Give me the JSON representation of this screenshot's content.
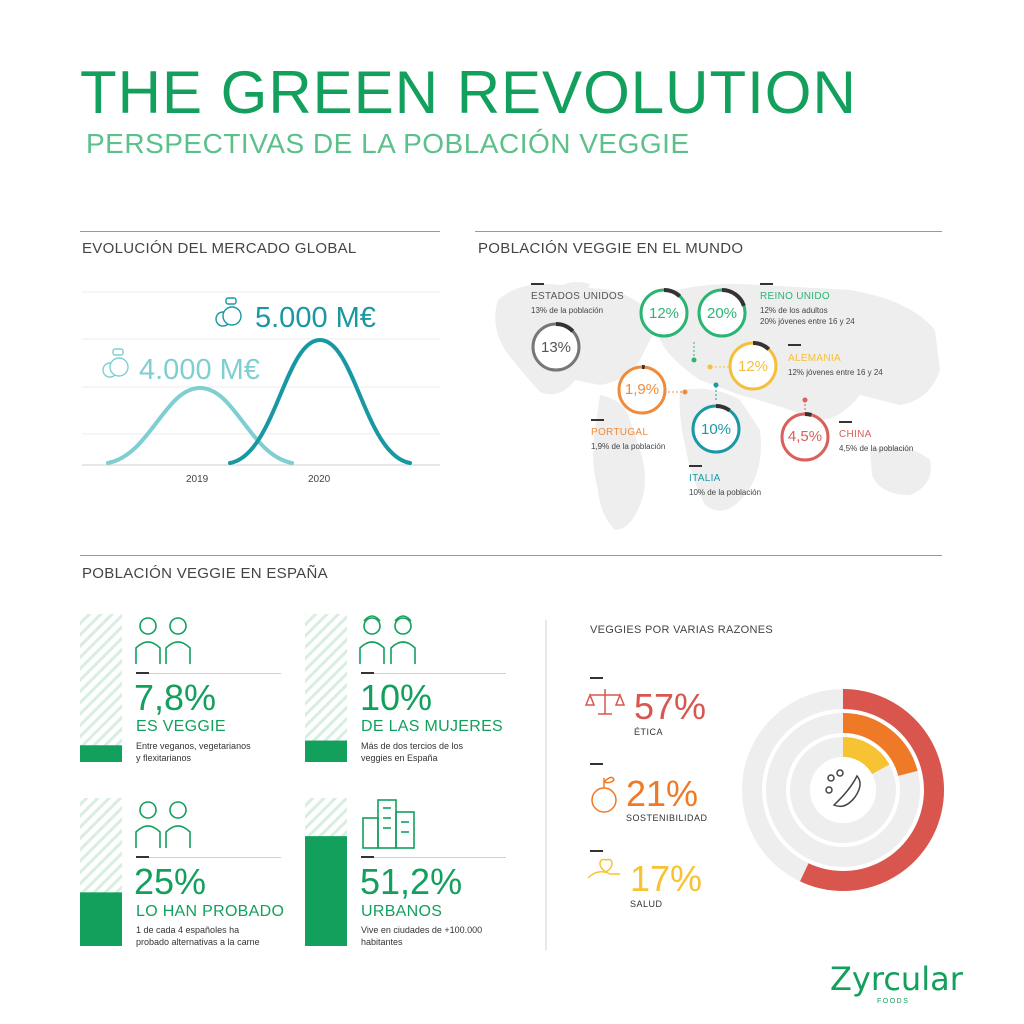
{
  "header": {
    "title": "THE GREEN REVOLUTION",
    "subtitle": "PERSPECTIVAS DE LA POBLACIÓN VEGGIE"
  },
  "market": {
    "section_title": "EVOLUCIÓN DEL MERCADO GLOBAL",
    "label_2019": "4.000 M€",
    "label_2020": "5.000 M€",
    "tick_2019": "2019",
    "tick_2020": "2020",
    "color_2019": "#7fcfd2",
    "color_2020": "#1898a2"
  },
  "world": {
    "section_title": "POBLACIÓN VEGGIE EN EL MUNDO",
    "countries": [
      {
        "name": "ESTADOS UNIDOS",
        "desc": [
          "13% de la población"
        ],
        "pct_label": "13%",
        "fraction": 0.13,
        "color": "#777777"
      },
      {
        "name": "REINO UNIDO",
        "desc": [
          "12% de los adultos",
          "20% jóvenes entre 16 y 24"
        ],
        "pct_label_a": "12%",
        "fraction_a": 0.12,
        "pct_label_b": "20%",
        "fraction_b": 0.2,
        "color": "#2bb573"
      },
      {
        "name": "ALEMANIA",
        "desc": [
          "12% jóvenes entre 16 y 24"
        ],
        "pct_label": "12%",
        "fraction": 0.12,
        "color": "#f5bf3b"
      },
      {
        "name": "PORTUGAL",
        "desc": [
          "1,9% de la población"
        ],
        "pct_label": "1,9%",
        "fraction": 0.019,
        "color": "#f08b3c"
      },
      {
        "name": "ITALIA",
        "desc": [
          "10% de la población"
        ],
        "pct_label": "10%",
        "fraction": 0.1,
        "color": "#1b98a6"
      },
      {
        "name": "CHINA",
        "desc": [
          "4,5% de la población"
        ],
        "pct_label": "4,5%",
        "fraction": 0.045,
        "color": "#d9605c"
      }
    ]
  },
  "spain": {
    "section_title": "POBLACIÓN VEGGIE EN ESPAÑA",
    "stats": [
      {
        "pct": "7,8%",
        "fraction": 0.078,
        "label": "ES VEGGIE",
        "desc": [
          "Entre veganos, vegetarianos",
          "y flexitarianos"
        ],
        "icon": "couple-icon"
      },
      {
        "pct": "10%",
        "fraction": 0.1,
        "label": "DE LAS MUJERES",
        "desc": [
          "Más de dos tercios de los",
          "veggies en España"
        ],
        "icon": "women-icon"
      },
      {
        "pct": "25%",
        "fraction": 0.25,
        "label": "LO HAN PROBADO",
        "desc": [
          "1 de cada 4 españoles ha",
          "probado alternativas a la carne"
        ],
        "icon": "couple-icon"
      },
      {
        "pct": "51,2%",
        "fraction": 0.512,
        "label": "URBANOS",
        "desc": [
          "Vive en ciudades de +100.000",
          "habitantes"
        ],
        "icon": "buildings-icon"
      }
    ]
  },
  "reasons": {
    "section_title": "VEGGIES POR VARIAS RAZONES",
    "items": [
      {
        "pct": "57%",
        "fraction": 0.57,
        "name": "ÉTICA",
        "color": "#d9564f",
        "icon": "scales-icon"
      },
      {
        "pct": "21%",
        "fraction": 0.21,
        "name": "SOSTENIBILIDAD",
        "color": "#ee7a27",
        "icon": "globe-plant-icon"
      },
      {
        "pct": "17%",
        "fraction": 0.17,
        "name": "SALUD",
        "color": "#f7c332",
        "icon": "hand-heart-icon"
      }
    ]
  },
  "brand": {
    "name": "Zyrcular",
    "sub": "FOODS"
  },
  "chart_data": [
    {
      "type": "area",
      "title": "EVOLUCIÓN DEL MERCADO GLOBAL",
      "categories": [
        "2019",
        "2020"
      ],
      "values": [
        4000,
        5000
      ],
      "unit": "M€"
    },
    {
      "type": "pie",
      "title": "VEGGIES POR VARIAS RAZONES",
      "categories": [
        "ÉTICA",
        "SOSTENIBILIDAD",
        "SALUD"
      ],
      "values": [
        57,
        21,
        17
      ],
      "unit": "%"
    }
  ]
}
